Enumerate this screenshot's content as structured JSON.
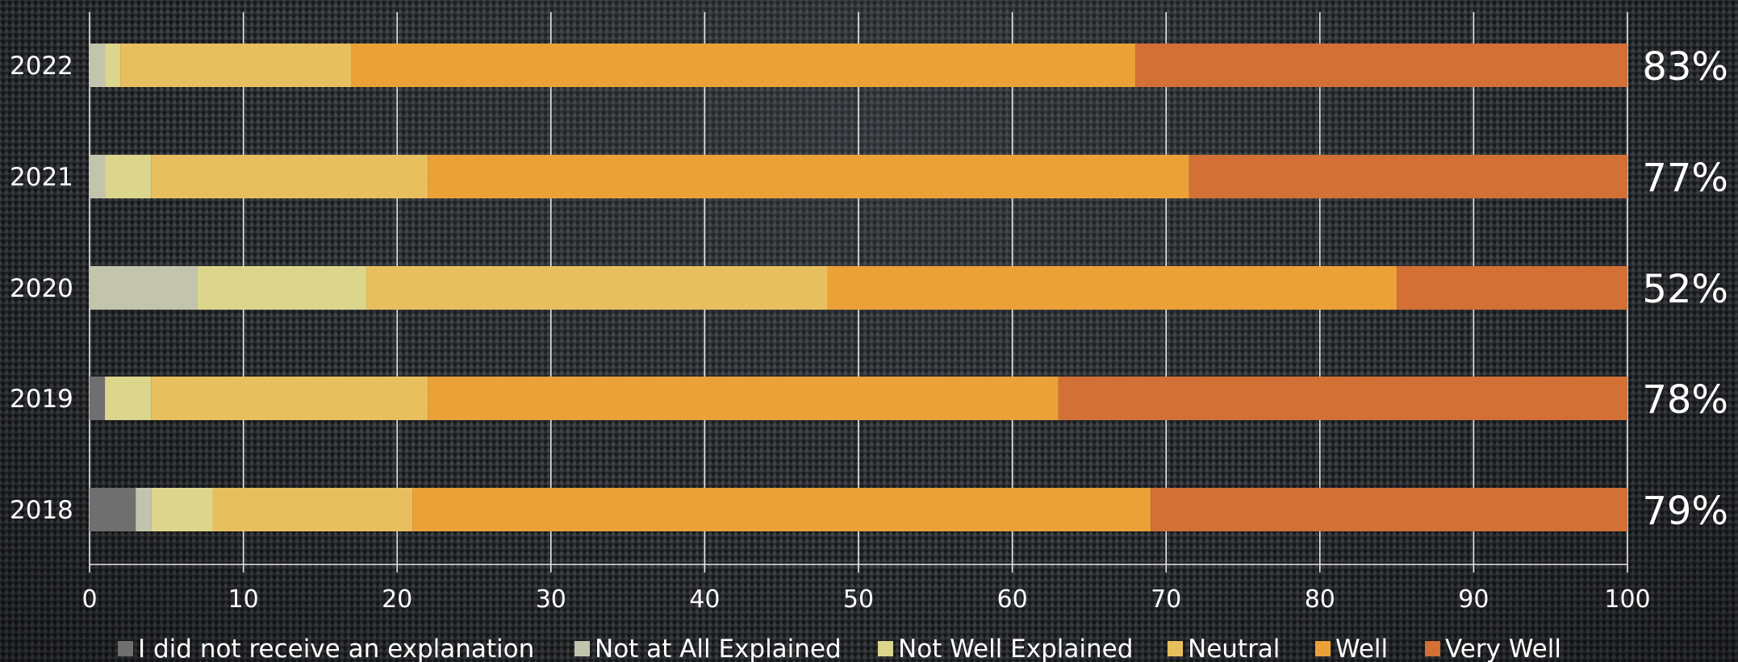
{
  "chart_data": {
    "type": "bar",
    "orientation": "horizontal",
    "stacked": true,
    "categories": [
      "2022",
      "2021",
      "2020",
      "2019",
      "2018"
    ],
    "series": [
      {
        "name": "I did not receive an explanation",
        "color": "#6f6f6f",
        "values": [
          0,
          0,
          0,
          1,
          3
        ]
      },
      {
        "name": "Not at All Explained",
        "color": "#c3c4ad",
        "values": [
          1,
          1,
          7,
          0,
          1
        ]
      },
      {
        "name": "Not Well Explained",
        "color": "#dcd68d",
        "values": [
          1,
          3,
          11,
          3,
          4
        ]
      },
      {
        "name": "Neutral",
        "color": "#e8bf5e",
        "values": [
          15,
          18,
          30,
          18,
          13
        ]
      },
      {
        "name": "Well",
        "color": "#eba138",
        "values": [
          51,
          49.5,
          37,
          41,
          48
        ]
      },
      {
        "name": "Very Well",
        "color": "#d27035",
        "values": [
          32,
          28.5,
          15,
          37,
          31
        ]
      }
    ],
    "bar_end_labels": [
      "83%",
      "77%",
      "52%",
      "78%",
      "79%"
    ],
    "xlim": [
      0,
      100
    ],
    "x_ticks": [
      "0",
      "10",
      "20",
      "30",
      "40",
      "50",
      "60",
      "70",
      "80",
      "90",
      "100"
    ],
    "grid": true,
    "legend_position": "bottom",
    "title": "",
    "xlabel": "",
    "ylabel": ""
  }
}
